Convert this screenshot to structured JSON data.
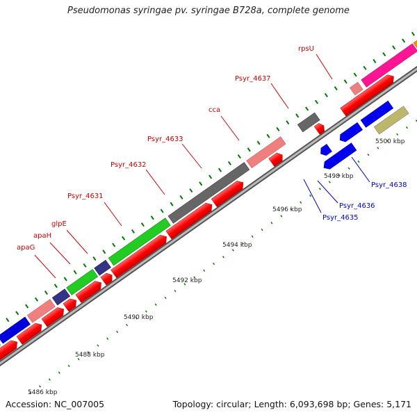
{
  "title": "Pseudomonas syringae pv. syringae B728a, complete genome",
  "accession": "Accession: NC_007005",
  "summary": "Topology: circular; Length: 6,093,698 bp; Genes: 5,171",
  "colors": {
    "cds_forward": "#ff0000",
    "cds_reverse": "#0000ee",
    "backbone": "#888888",
    "tick": "#007700"
  },
  "scale_labels": [
    "5486 kbp",
    "5488 kbp",
    "5490 kbp",
    "5492 kbp",
    "5494 kbp",
    "5496 kbp",
    "5498 kbp",
    "5500 kbp"
  ],
  "gene_labels": {
    "forward": [
      "apaG",
      "apaH",
      "glpE",
      "Psyr_4631",
      "Psyr_4632",
      "Psyr_4633",
      "cca",
      "Psyr_4637",
      "rpsU"
    ],
    "reverse": [
      "Psyr_4635",
      "Psyr_4636",
      "Psyr_4638"
    ]
  }
}
